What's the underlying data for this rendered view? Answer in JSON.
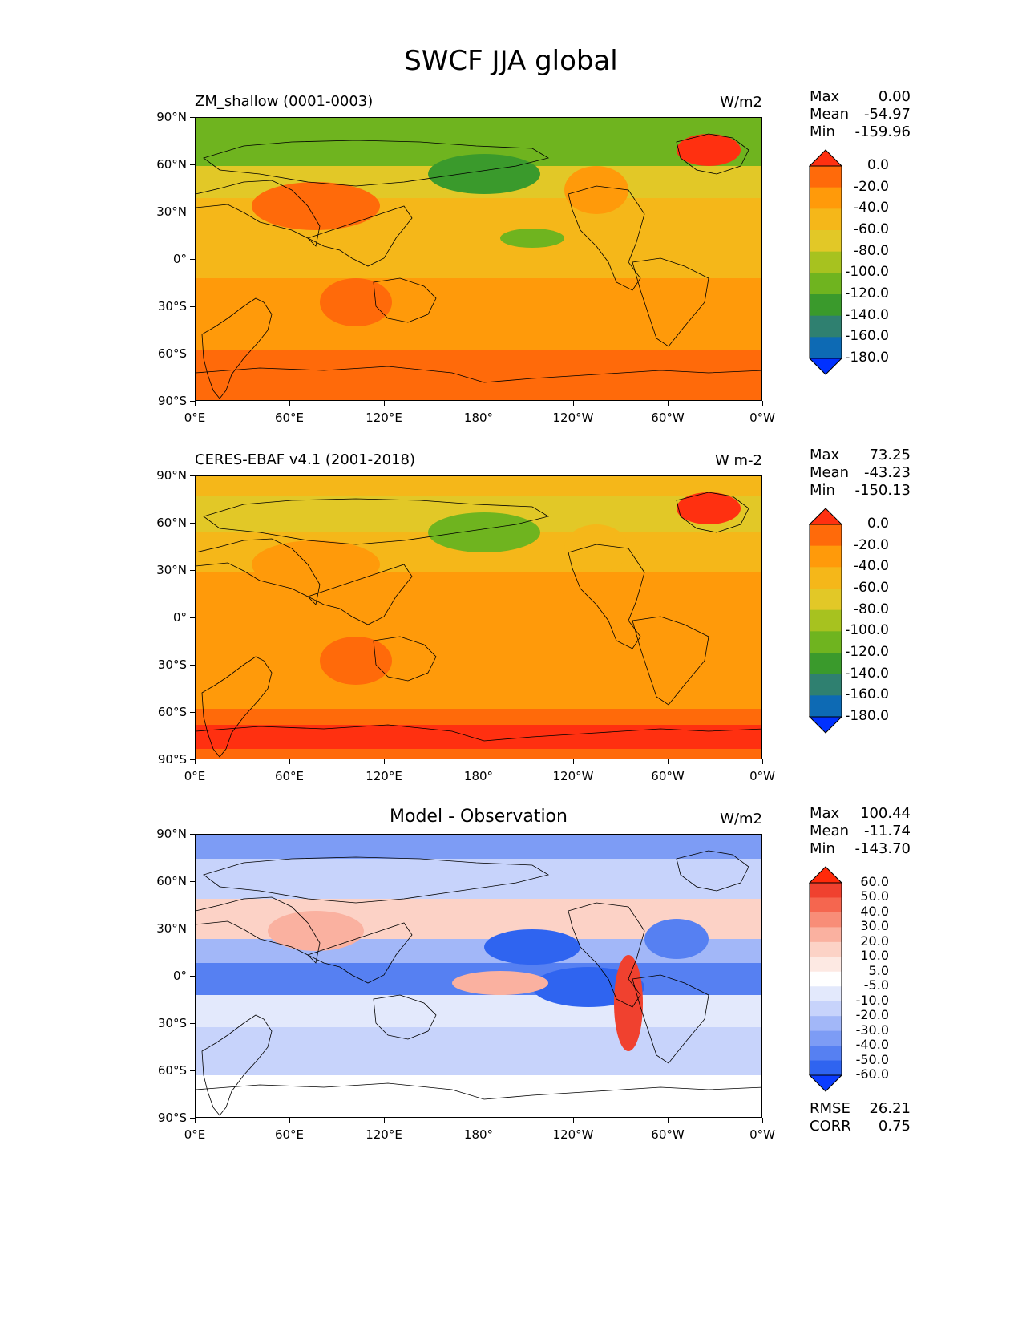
{
  "figure_title": "SWCF JJA global",
  "x_ticks": [
    "0°E",
    "60°E",
    "120°E",
    "180°",
    "120°W",
    "60°W",
    "0°W"
  ],
  "y_ticks": [
    "90°N",
    "60°N",
    "30°N",
    "0°",
    "30°S",
    "60°S",
    "90°S"
  ],
  "panels": [
    {
      "title_left": "ZM_shallow (0001-0003)",
      "title_center": "",
      "units": "W/m2",
      "stats": {
        "max_label": "Max",
        "max": "0.00",
        "mean_label": "Mean",
        "mean": "-54.97",
        "min_label": "Min",
        "min": "-159.96"
      },
      "colorbar": {
        "levels": [
          "0.0",
          "-20.0",
          "-40.0",
          "-60.0",
          "-80.0",
          "-100.0",
          "-120.0",
          "-140.0",
          "-160.0",
          "-180.0"
        ],
        "colors": [
          "#ff3010",
          "#ff6a0a",
          "#ff9a0a",
          "#f5b719",
          "#e2c827",
          "#a7c21f",
          "#6fb41f",
          "#3a9a2c",
          "#2f8070",
          "#0d6ab4",
          "#0031ff"
        ]
      }
    },
    {
      "title_left": "CERES-EBAF v4.1 (2001-2018)",
      "title_center": "",
      "units": "W m-2",
      "stats": {
        "max_label": "Max",
        "max": "73.25",
        "mean_label": "Mean",
        "mean": "-43.23",
        "min_label": "Min",
        "min": "-150.13"
      },
      "colorbar": {
        "levels": [
          "0.0",
          "-20.0",
          "-40.0",
          "-60.0",
          "-80.0",
          "-100.0",
          "-120.0",
          "-140.0",
          "-160.0",
          "-180.0"
        ],
        "colors": [
          "#ff3010",
          "#ff6a0a",
          "#ff9a0a",
          "#f5b719",
          "#e2c827",
          "#a7c21f",
          "#6fb41f",
          "#3a9a2c",
          "#2f8070",
          "#0d6ab4",
          "#0031ff"
        ]
      }
    },
    {
      "title_left": "",
      "title_center": "Model - Observation",
      "units": "W/m2",
      "stats": {
        "max_label": "Max",
        "max": "100.44",
        "mean_label": "Mean",
        "mean": "-11.74",
        "min_label": "Min",
        "min": "-143.70"
      },
      "colorbar": {
        "levels": [
          "60.0",
          "50.0",
          "40.0",
          "30.0",
          "20.0",
          "10.0",
          "5.0",
          "-5.0",
          "-10.0",
          "-20.0",
          "-30.0",
          "-40.0",
          "-50.0",
          "-60.0"
        ],
        "colors": [
          "#ff2a0a",
          "#f0412f",
          "#f5664f",
          "#f88d78",
          "#fab1a0",
          "#fcd2c6",
          "#fde9e3",
          "#ffffff",
          "#e3e9fc",
          "#c7d3fb",
          "#a2b7f8",
          "#7d9cf5",
          "#5680f2",
          "#2f64f0",
          "#0b3cff"
        ]
      },
      "rmse_label": "RMSE",
      "rmse": "26.21",
      "corr_label": "CORR",
      "corr": "0.75"
    }
  ]
}
